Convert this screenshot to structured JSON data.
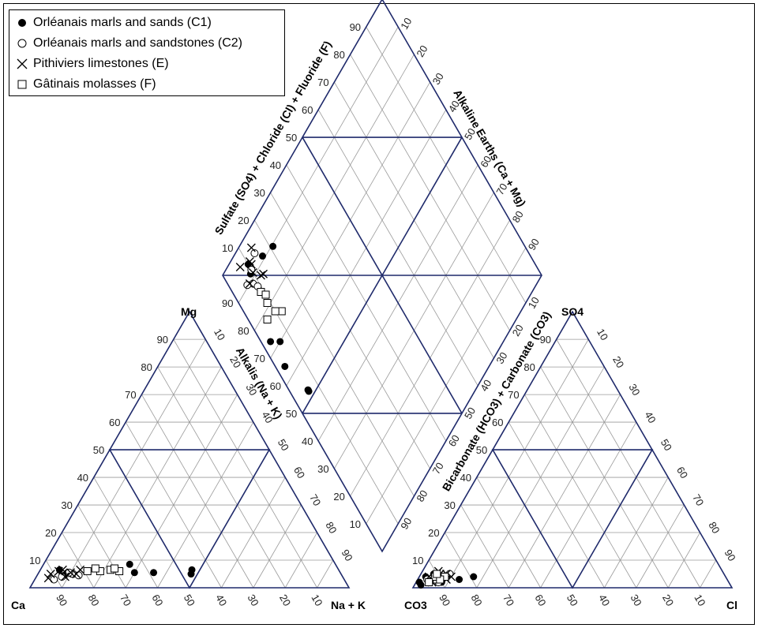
{
  "chart_data": {
    "type": "scatter",
    "subtype": "piper-diagram",
    "legend_position": "top-left",
    "grid": true,
    "colors": {
      "frame": "#1f2a6b",
      "grid": "#9a9a9a",
      "marker": "#000000"
    },
    "corner_labels": {
      "ca": "Ca",
      "mg": "Mg",
      "na_k": "Na + K",
      "co3": "CO3",
      "so4": "SO4",
      "cl": "Cl"
    },
    "axis_labels": {
      "alkalis": "Alkalis (Na + K)",
      "bicarbonate": "Bicarbonate (HCO3) + Carbonate (CO3)",
      "sulfate": "Sulfate (SO4) + Chloride (Cl) + Fluoride (F)",
      "alkaline_earths": "Alkaline Earths (Ca + Mg)"
    },
    "ticks": [
      "10",
      "20",
      "30",
      "40",
      "50",
      "60",
      "70",
      "80",
      "90"
    ],
    "series": [
      {
        "name": "Orléanais marls and sands (C1)",
        "marker": "filled-circle",
        "cations_pct": [
          [
            5.5,
            30,
            64.5
          ],
          [
            6.5,
            6,
            87.5
          ],
          [
            5.5,
            9,
            85.5
          ],
          [
            5.5,
            36,
            58.5
          ],
          [
            8.5,
            27,
            64.5
          ],
          [
            5,
            48,
            47
          ],
          [
            6.5,
            47.5,
            46
          ],
          [
            4.5,
            8.5,
            87
          ],
          [
            5,
            10.5,
            84.5
          ]
        ],
        "anions_pct": [
          [
            4,
            2,
            94
          ],
          [
            2,
            8,
            90
          ],
          [
            3,
            13,
            84
          ],
          [
            1,
            2,
            97
          ],
          [
            2,
            1,
            97
          ],
          [
            3,
            3,
            94
          ],
          [
            2,
            4,
            94
          ],
          [
            5,
            4,
            91
          ],
          [
            4,
            17,
            79
          ]
        ]
      },
      {
        "name": "Orléanais marls and sandstones (C2)",
        "marker": "open-circle",
        "cations_pct": [
          [
            4,
            8,
            88
          ],
          [
            5,
            11,
            84
          ],
          [
            3,
            6,
            91
          ],
          [
            4.5,
            13,
            82.5
          ],
          [
            5.5,
            9.5,
            85
          ]
        ],
        "anions_pct": [
          [
            4,
            6,
            90
          ],
          [
            3,
            5,
            92
          ],
          [
            5,
            9,
            86
          ],
          [
            2,
            7,
            91
          ],
          [
            3,
            3,
            94
          ]
        ]
      },
      {
        "name": "Pithiviers limestones (E)",
        "marker": "x",
        "cations_pct": [
          [
            5,
            4,
            91
          ],
          [
            6.5,
            7,
            86.5
          ],
          [
            4,
            9,
            87
          ],
          [
            5.5,
            10,
            84.5
          ],
          [
            6,
            6,
            88
          ],
          [
            3.5,
            4,
            92.5
          ],
          [
            5,
            12,
            83
          ],
          [
            6.5,
            12.5,
            81
          ]
        ],
        "anions_pct": [
          [
            4,
            3,
            93
          ],
          [
            5,
            6,
            89
          ],
          [
            3,
            7,
            90
          ],
          [
            2,
            5,
            93
          ],
          [
            6,
            5,
            89
          ],
          [
            4,
            10,
            86
          ],
          [
            3,
            9,
            88
          ],
          [
            5,
            8,
            87
          ]
        ]
      },
      {
        "name": "Gâtinais molasses (F)",
        "marker": "open-square",
        "cations_pct": [
          [
            6,
            15,
            79
          ],
          [
            6,
            19,
            75
          ],
          [
            6.5,
            22,
            71.5
          ],
          [
            6,
            25,
            69
          ],
          [
            7,
            17,
            76
          ],
          [
            7,
            23,
            70
          ]
        ],
        "anions_pct": [
          [
            3,
            6,
            91
          ],
          [
            4,
            5,
            91
          ],
          [
            2,
            4,
            94
          ],
          [
            4,
            8,
            88
          ],
          [
            3,
            7,
            90
          ],
          [
            5,
            5,
            90
          ]
        ]
      }
    ]
  }
}
